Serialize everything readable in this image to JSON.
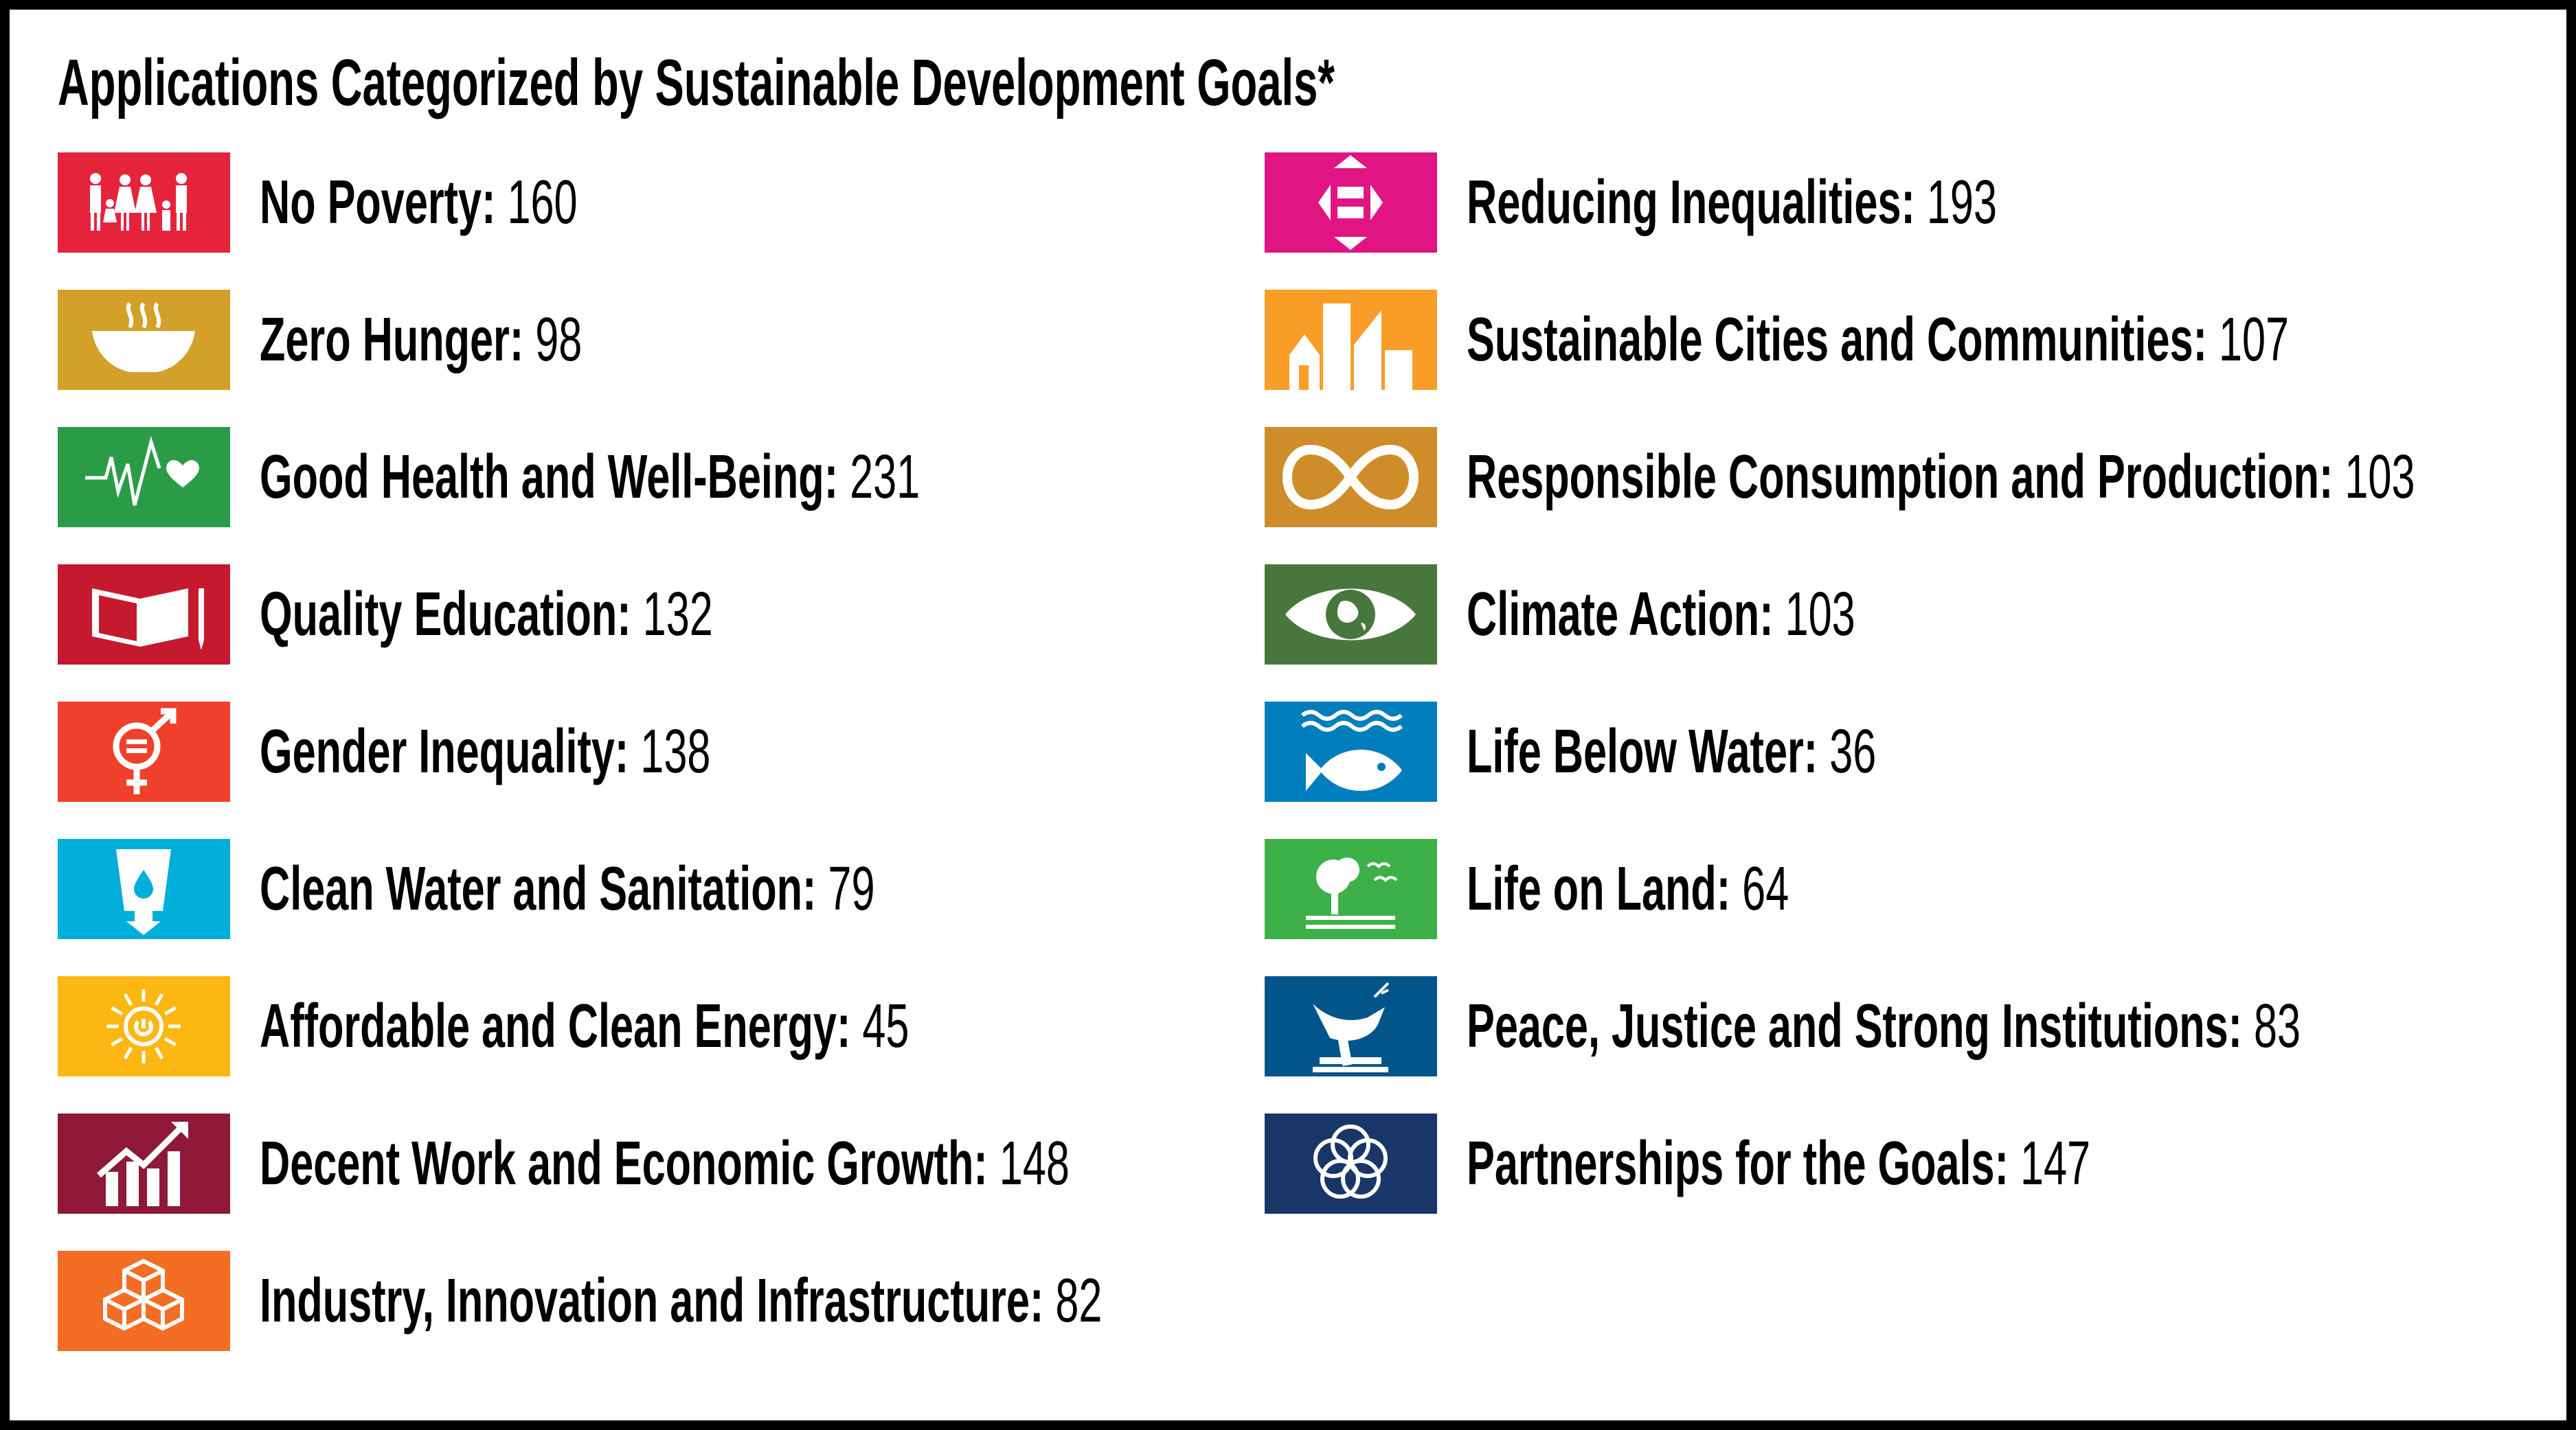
{
  "title": "Applications Categorized by Sustainable Development Goals*",
  "goals": [
    {
      "name": "No Poverty",
      "count": "160",
      "color": "#E5243B",
      "icon": "family-icon"
    },
    {
      "name": "Zero Hunger",
      "count": "98",
      "color": "#D3A029",
      "icon": "bowl-icon"
    },
    {
      "name": "Good Health and Well-Being",
      "count": "231",
      "color": "#2C9B48",
      "icon": "heartbeat-icon"
    },
    {
      "name": "Quality Education",
      "count": "132",
      "color": "#C5192D",
      "icon": "book-icon"
    },
    {
      "name": "Gender Inequality",
      "count": "138",
      "color": "#EF402C",
      "icon": "gender-icon"
    },
    {
      "name": "Clean Water and Sanitation",
      "count": "79",
      "color": "#00AED9",
      "icon": "water-glass-icon"
    },
    {
      "name": "Affordable and Clean Energy",
      "count": "45",
      "color": "#FDB713",
      "icon": "sun-power-icon"
    },
    {
      "name": "Decent Work and Economic Growth",
      "count": "148",
      "color": "#8F1838",
      "icon": "growth-chart-icon"
    },
    {
      "name": "Industry, Innovation and Infrastructure",
      "count": "82",
      "color": "#F36D25",
      "icon": "cubes-icon"
    },
    {
      "name": "Reducing Inequalities",
      "count": "193",
      "color": "#E11484",
      "icon": "equal-arrows-icon"
    },
    {
      "name": "Sustainable Cities and Communities",
      "count": "107",
      "color": "#F99D26",
      "icon": "city-icon"
    },
    {
      "name": "Responsible Consumption and Production",
      "count": "103",
      "color": "#CF8D2A",
      "icon": "infinity-icon"
    },
    {
      "name": "Climate Action",
      "count": "103",
      "color": "#48773E",
      "icon": "eye-globe-icon"
    },
    {
      "name": "Life Below Water",
      "count": "36",
      "color": "#007DBC",
      "icon": "fish-icon"
    },
    {
      "name": "Life on Land",
      "count": "64",
      "color": "#3EB049",
      "icon": "tree-icon"
    },
    {
      "name": "Peace, Justice and Strong Institutions",
      "count": "83",
      "color": "#02558B",
      "icon": "dove-gavel-icon"
    },
    {
      "name": "Partnerships for the Goals",
      "count": "147",
      "color": "#183668",
      "icon": "rings-icon"
    }
  ]
}
